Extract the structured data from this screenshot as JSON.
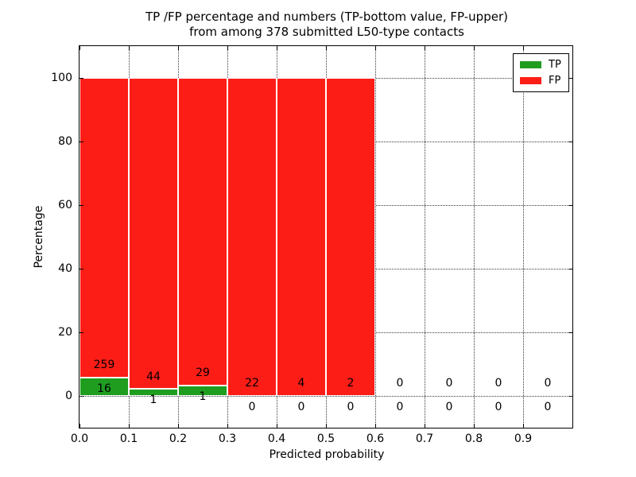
{
  "chart": {
    "title_line1": "TP /FP percentage and numbers (TP-bottom value, FP-upper)",
    "title_line2": "from among 378 submitted L50-type contacts",
    "xlabel": "Predicted probability",
    "ylabel": "Percentage"
  },
  "legend": {
    "items": [
      {
        "label": "TP",
        "color": "#1f9d1f"
      },
      {
        "label": "FP",
        "color": "#fc1d17"
      }
    ]
  },
  "chart_data": {
    "type": "bar",
    "stacked": true,
    "title": "TP /FP percentage and numbers (TP-bottom value, FP-upper) from among 378 submitted L50-type contacts",
    "xlabel": "Predicted probability",
    "ylabel": "Percentage",
    "total_submitted_contacts": 378,
    "bin_edges": [
      0.0,
      0.1,
      0.2,
      0.3,
      0.4,
      0.5,
      0.6,
      0.7,
      0.8,
      0.9,
      1.0
    ],
    "series": [
      {
        "name": "TP",
        "color": "#1f9d1f",
        "counts": [
          16,
          1,
          1,
          0,
          0,
          0,
          0,
          0,
          0,
          0
        ]
      },
      {
        "name": "FP",
        "color": "#fc1d17",
        "counts": [
          259,
          44,
          29,
          22,
          4,
          2,
          0,
          0,
          0,
          0
        ]
      }
    ],
    "bar_rule": "each drawn bar is stacked to 100%: green = TP/(TP+FP)*100, red = FP/(TP+FP)*100; bins with zero total have no bar",
    "xticks": [
      "0.0",
      "0.1",
      "0.2",
      "0.3",
      "0.4",
      "0.5",
      "0.6",
      "0.7",
      "0.8",
      "0.9"
    ],
    "yticks": [
      0,
      20,
      40,
      60,
      80,
      100
    ],
    "xlim": [
      0.0,
      1.0
    ],
    "ylim": [
      -10,
      110
    ],
    "grid": true,
    "grid_style": "dotted",
    "legend_position": "upper right",
    "bar_edge_color": "#ffffff"
  }
}
